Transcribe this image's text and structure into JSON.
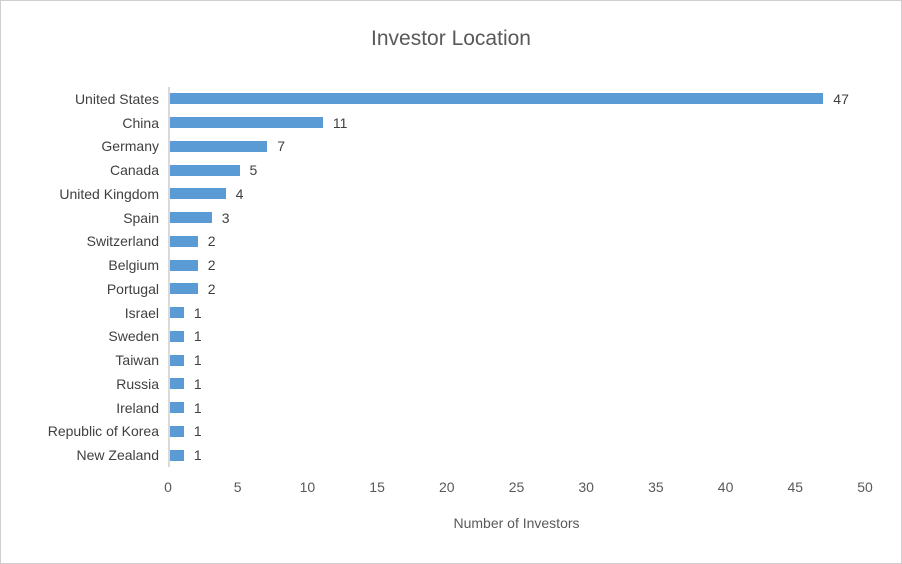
{
  "chart_data": {
    "type": "bar",
    "orientation": "horizontal",
    "title": "Investor Location",
    "xlabel": "Number of Investors",
    "ylabel": "",
    "categories": [
      "United States",
      "China",
      "Germany",
      "Canada",
      "United Kingdom",
      "Spain",
      "Switzerland",
      "Belgium",
      "Portugal",
      "Israel",
      "Sweden",
      "Taiwan",
      "Russia",
      "Ireland",
      "Republic of Korea",
      "New Zealand"
    ],
    "values": [
      47,
      11,
      7,
      5,
      4,
      3,
      2,
      2,
      2,
      1,
      1,
      1,
      1,
      1,
      1,
      1
    ],
    "xlim": [
      0,
      50
    ],
    "xticks": [
      0,
      5,
      10,
      15,
      20,
      25,
      30,
      35,
      40,
      45,
      50
    ],
    "grid": false,
    "legend": false,
    "data_labels": true
  },
  "colors": {
    "bar": "#5B9BD5",
    "title_text": "#595959",
    "label_text": "#404040",
    "tick_text": "#595959",
    "axis_line": "#D9D9D9",
    "border": "#D0CECE",
    "background": "#FFFFFF"
  }
}
